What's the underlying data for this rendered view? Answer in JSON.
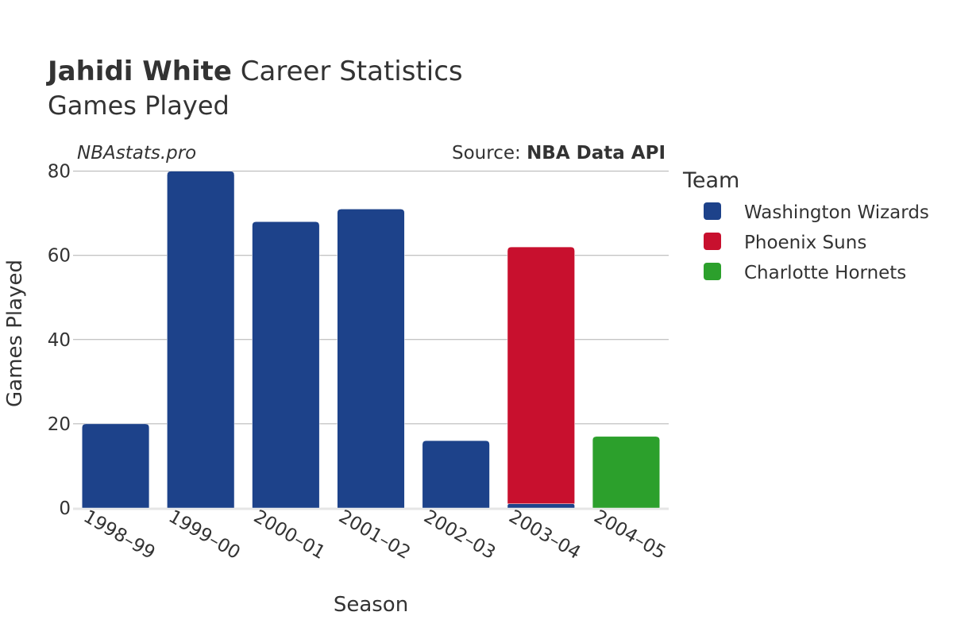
{
  "header": {
    "player_name": "Jahidi White",
    "title_rest": " Career Statistics",
    "subtitle": "Games Played",
    "site": "NBAstats.pro",
    "source_prefix": "Source: ",
    "source_name": "NBA Data API"
  },
  "legend": {
    "title": "Team"
  },
  "colors": {
    "text": "#333333",
    "grid": "#b0b0b0",
    "zeroline": "#e6e6e6"
  },
  "chart_data": {
    "type": "bar",
    "stacked": true,
    "title": "Jahidi White Career Statistics",
    "subtitle": "Games Played",
    "xlabel": "Season",
    "ylabel": "Games Played",
    "ylim": [
      0,
      82
    ],
    "yticks": [
      0,
      20,
      40,
      60,
      80
    ],
    "categories": [
      "1998–99",
      "1999–00",
      "2000–01",
      "2001–02",
      "2002–03",
      "2003–04",
      "2004–05"
    ],
    "series": [
      {
        "name": "Washington Wizards",
        "color": "#1d428a",
        "values": [
          20,
          80,
          68,
          71,
          16,
          1,
          0
        ]
      },
      {
        "name": "Phoenix Suns",
        "color": "#c8102e",
        "values": [
          0,
          0,
          0,
          0,
          0,
          61,
          0
        ]
      },
      {
        "name": "Charlotte Hornets",
        "color": "#2ca02c",
        "values": [
          0,
          0,
          0,
          0,
          0,
          0,
          17
        ]
      }
    ],
    "legend_position": "right"
  }
}
